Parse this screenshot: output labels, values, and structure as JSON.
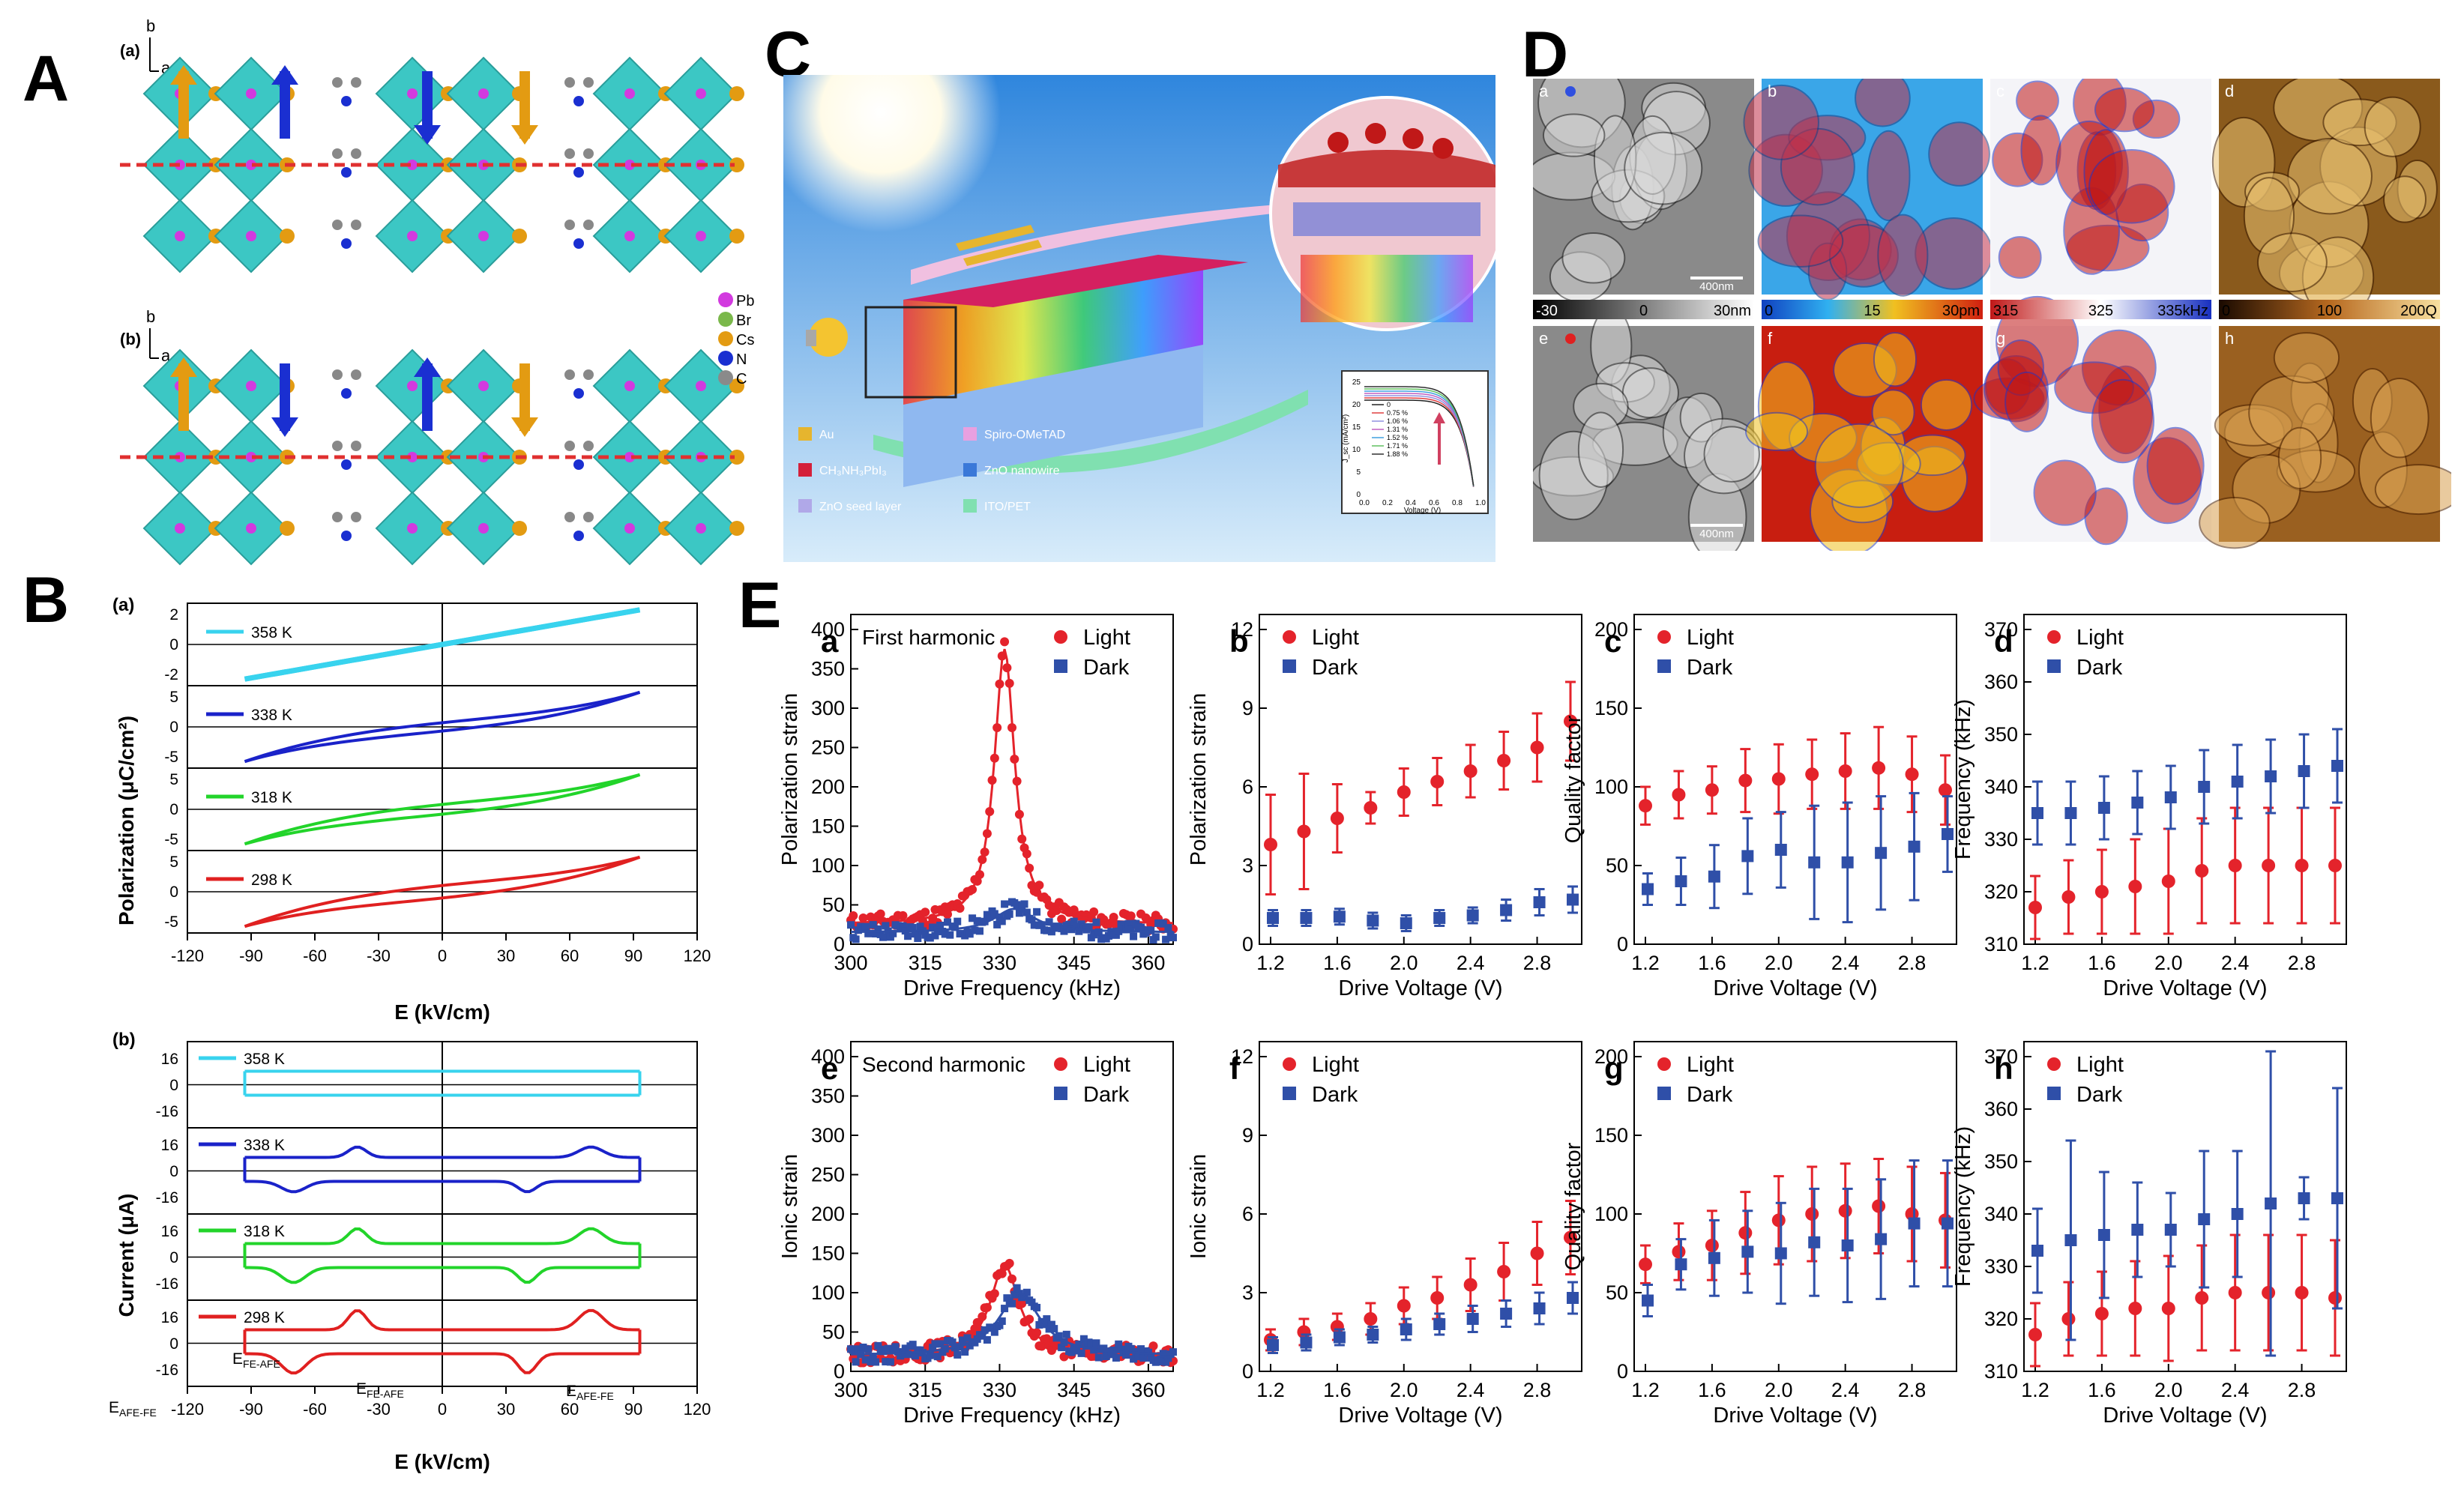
{
  "labels": {
    "A": "A",
    "B": "B",
    "C": "C",
    "D": "D",
    "E": "E"
  },
  "panelA": {
    "sub_a": "(a)",
    "sub_b": "(b)",
    "axis_b": "b",
    "axis_a": "a",
    "legend": [
      {
        "name": "Pb",
        "color": "#d23adf"
      },
      {
        "name": "Br",
        "color": "#7ab84a"
      },
      {
        "name": "Cs",
        "color": "#e39b12"
      },
      {
        "name": "N",
        "color": "#1a2fd1"
      },
      {
        "name": "C",
        "color": "#8a8a8a"
      }
    ]
  },
  "panelB": {
    "sub_a": "(a)",
    "sub_b": "(b)",
    "ylabel_a": "Polarization (μC/cm²)",
    "ylabel_b": "Current (μA)",
    "xlabel": "E (kV/cm)",
    "xticks": [
      "-120",
      "-90",
      "-60",
      "-30",
      "0",
      "30",
      "60",
      "90",
      "120"
    ],
    "temps": [
      {
        "t": "358 K",
        "color": "#38d3ee"
      },
      {
        "t": "338 K",
        "color": "#1a22c9"
      },
      {
        "t": "318 K",
        "color": "#22d42a"
      },
      {
        "t": "298 K",
        "color": "#e02020"
      }
    ],
    "pol_ticks": [
      [
        "2",
        "0",
        "-2"
      ],
      [
        "5",
        "0",
        "-5"
      ],
      [
        "5",
        "0",
        "-5"
      ],
      [
        "5",
        "0",
        "-5"
      ]
    ],
    "cur_ticks": [
      "16",
      "0",
      "-16"
    ],
    "annot": {
      "e_fe_afe": "E",
      "e_fe_afe_sub": "FE-AFE",
      "e_afe_fe": "E",
      "e_afe_fe_sub": "AFE-FE"
    }
  },
  "panelC": {
    "legend": [
      {
        "name": "Au",
        "color": "#e6b52e"
      },
      {
        "name": "Spiro-OMeTAD",
        "color": "#e8a0e0"
      },
      {
        "name": "CH₃NH₃PbI₃",
        "color": "#d4203a"
      },
      {
        "name": "ZnO nanowire",
        "color": "#3a78d8"
      },
      {
        "name": "ZnO seed layer",
        "color": "#b0a8e8"
      },
      {
        "name": "ITO/PET",
        "color": "#80e0b0"
      }
    ],
    "inset": {
      "ylabel": "J_sc (mA/cm²)",
      "xlabel": "Voltage (V)",
      "yticks": [
        "0",
        "5",
        "10",
        "15",
        "20",
        "25"
      ],
      "xticks": [
        "0.0",
        "0.2",
        "0.4",
        "0.6",
        "0.8",
        "1.0"
      ],
      "series": [
        "0",
        "0.75 %",
        "1.06 %",
        "1.31 %",
        "1.52 %",
        "1.71 %",
        "1.88 %"
      ],
      "colors": [
        "#222222",
        "#e04040",
        "#9090e0",
        "#c060c0",
        "#40a0e0",
        "#60c060",
        "#303030"
      ]
    }
  },
  "panelD": {
    "sub": [
      "a",
      "b",
      "c",
      "d",
      "e",
      "f",
      "g",
      "h"
    ],
    "scalebar": "400nm",
    "bars": [
      {
        "min": "-30",
        "mid": "0",
        "max": "30nm"
      },
      {
        "min": "0",
        "mid": "15",
        "max": "30pm"
      },
      {
        "min": "315",
        "mid": "325",
        "max": "335kHz"
      },
      {
        "min": "0",
        "mid": "100",
        "max": "200Q"
      }
    ]
  },
  "panelE": {
    "legend": {
      "light": "Light",
      "dark": "Dark"
    },
    "colors": {
      "light": "#e4232b",
      "dark": "#2f4fa8"
    },
    "plots": [
      {
        "id": "a",
        "note": "First harmonic",
        "ylabel": "Polarization strain",
        "xlabel": "Drive Frequency (kHz)",
        "yticks": [
          "0",
          "50",
          "100",
          "150",
          "200",
          "250",
          "300",
          "350",
          "400"
        ],
        "xticks": [
          "300",
          "315",
          "330",
          "345",
          "360"
        ]
      },
      {
        "id": "b",
        "note": "",
        "ylabel": "Polarization strain",
        "xlabel": "Drive Voltage (V)",
        "yticks": [
          "0",
          "3",
          "6",
          "9",
          "12"
        ],
        "xticks": [
          "1.2",
          "1.6",
          "2.0",
          "2.4",
          "2.8"
        ]
      },
      {
        "id": "c",
        "note": "",
        "ylabel": "Quality factor",
        "xlabel": "Drive Voltage (V)",
        "yticks": [
          "0",
          "50",
          "100",
          "150",
          "200"
        ],
        "xticks": [
          "1.2",
          "1.6",
          "2.0",
          "2.4",
          "2.8"
        ]
      },
      {
        "id": "d",
        "note": "",
        "ylabel": "Frequency (kHz)",
        "xlabel": "Drive Voltage (V)",
        "yticks": [
          "310",
          "320",
          "330",
          "340",
          "350",
          "360",
          "370"
        ],
        "xticks": [
          "1.2",
          "1.6",
          "2.0",
          "2.4",
          "2.8"
        ]
      },
      {
        "id": "e",
        "note": "Second harmonic",
        "ylabel": "Ionic strain",
        "xlabel": "Drive Frequency (kHz)",
        "yticks": [
          "0",
          "50",
          "100",
          "150",
          "200",
          "250",
          "300",
          "350",
          "400"
        ],
        "xticks": [
          "300",
          "315",
          "330",
          "345",
          "360"
        ]
      },
      {
        "id": "f",
        "note": "",
        "ylabel": "Ionic strain",
        "xlabel": "Drive Voltage (V)",
        "yticks": [
          "0",
          "3",
          "6",
          "9",
          "12"
        ],
        "xticks": [
          "1.2",
          "1.6",
          "2.0",
          "2.4",
          "2.8"
        ]
      },
      {
        "id": "g",
        "note": "",
        "ylabel": "Quality factor",
        "xlabel": "Drive Voltage (V)",
        "yticks": [
          "0",
          "50",
          "100",
          "150",
          "200"
        ],
        "xticks": [
          "1.2",
          "1.6",
          "2.0",
          "2.4",
          "2.8"
        ]
      },
      {
        "id": "h",
        "note": "",
        "ylabel": "Frequency (kHz)",
        "xlabel": "Drive Voltage (V)",
        "yticks": [
          "310",
          "320",
          "330",
          "340",
          "350",
          "360",
          "370"
        ],
        "xticks": [
          "1.2",
          "1.6",
          "2.0",
          "2.4",
          "2.8"
        ]
      }
    ]
  },
  "chart_data": [
    {
      "type": "line",
      "panel": "E-a",
      "title": "First harmonic",
      "xlabel": "Drive Frequency (kHz)",
      "ylabel": "Polarization strain",
      "xlim": [
        300,
        365
      ],
      "ylim": [
        0,
        400
      ],
      "series": [
        {
          "name": "Light",
          "peak_x": 331,
          "peak_y": 375,
          "baseline": 25
        },
        {
          "name": "Dark",
          "peak_x": 333,
          "peak_y": 45,
          "baseline": 15
        }
      ]
    },
    {
      "type": "scatter",
      "panel": "E-b",
      "xlabel": "Drive Voltage (V)",
      "ylabel": "Polarization strain",
      "x": [
        1.2,
        1.4,
        1.6,
        1.8,
        2.0,
        2.2,
        2.4,
        2.6,
        2.8,
        3.0
      ],
      "ylim": [
        0,
        12
      ],
      "series": [
        {
          "name": "Light",
          "values": [
            3.8,
            4.3,
            4.8,
            5.2,
            5.8,
            6.2,
            6.6,
            7.0,
            7.5,
            8.5
          ],
          "err": [
            1.9,
            2.2,
            1.3,
            0.6,
            0.9,
            0.9,
            1.0,
            1.1,
            1.3,
            1.5
          ]
        },
        {
          "name": "Dark",
          "values": [
            1.0,
            1.0,
            1.05,
            0.9,
            0.8,
            1.0,
            1.1,
            1.3,
            1.6,
            1.7
          ],
          "err": [
            0.3,
            0.3,
            0.3,
            0.3,
            0.3,
            0.3,
            0.3,
            0.4,
            0.5,
            0.5
          ]
        }
      ]
    },
    {
      "type": "scatter",
      "panel": "E-c",
      "xlabel": "Drive Voltage (V)",
      "ylabel": "Quality factor",
      "x": [
        1.2,
        1.4,
        1.6,
        1.8,
        2.0,
        2.2,
        2.4,
        2.6,
        2.8,
        3.0
      ],
      "ylim": [
        0,
        200
      ],
      "series": [
        {
          "name": "Light",
          "values": [
            88,
            95,
            98,
            104,
            105,
            108,
            110,
            112,
            108,
            98
          ],
          "err": [
            12,
            15,
            15,
            20,
            22,
            22,
            24,
            26,
            24,
            22
          ]
        },
        {
          "name": "Dark",
          "values": [
            35,
            40,
            43,
            56,
            60,
            52,
            52,
            58,
            62,
            70
          ],
          "err": [
            10,
            15,
            20,
            24,
            24,
            36,
            38,
            36,
            34,
            24
          ]
        }
      ]
    },
    {
      "type": "scatter",
      "panel": "E-d",
      "xlabel": "Drive Voltage (V)",
      "ylabel": "Frequency (kHz)",
      "x": [
        1.2,
        1.4,
        1.6,
        1.8,
        2.0,
        2.2,
        2.4,
        2.6,
        2.8,
        3.0
      ],
      "ylim": [
        310,
        370
      ],
      "series": [
        {
          "name": "Light",
          "values": [
            317,
            319,
            320,
            321,
            322,
            324,
            325,
            325,
            325,
            325
          ],
          "err": [
            6,
            7,
            8,
            9,
            10,
            10,
            11,
            11,
            11,
            11
          ]
        },
        {
          "name": "Dark",
          "values": [
            335,
            335,
            336,
            337,
            338,
            340,
            341,
            342,
            343,
            344
          ],
          "err": [
            6,
            6,
            6,
            6,
            6,
            7,
            7,
            7,
            7,
            7
          ]
        }
      ]
    },
    {
      "type": "line",
      "panel": "E-e",
      "title": "Second harmonic",
      "xlabel": "Drive Frequency (kHz)",
      "ylabel": "Ionic strain",
      "xlim": [
        300,
        365
      ],
      "ylim": [
        0,
        400
      ],
      "series": [
        {
          "name": "Light",
          "peak_x": 331,
          "peak_y": 135,
          "baseline": 20
        },
        {
          "name": "Dark",
          "peak_x": 334,
          "peak_y": 100,
          "baseline": 20
        }
      ]
    },
    {
      "type": "scatter",
      "panel": "E-f",
      "xlabel": "Drive Voltage (V)",
      "ylabel": "Ionic strain",
      "x": [
        1.2,
        1.4,
        1.6,
        1.8,
        2.0,
        2.2,
        2.4,
        2.6,
        2.8,
        3.0
      ],
      "ylim": [
        0,
        12
      ],
      "series": [
        {
          "name": "Light",
          "values": [
            1.2,
            1.5,
            1.7,
            2.0,
            2.5,
            2.8,
            3.3,
            3.8,
            4.5,
            5.1
          ],
          "err": [
            0.4,
            0.5,
            0.5,
            0.6,
            0.7,
            0.8,
            1.0,
            1.1,
            1.2,
            1.4
          ]
        },
        {
          "name": "Dark",
          "values": [
            1.0,
            1.1,
            1.3,
            1.4,
            1.6,
            1.8,
            2.0,
            2.2,
            2.4,
            2.8
          ],
          "err": [
            0.3,
            0.3,
            0.3,
            0.3,
            0.4,
            0.4,
            0.5,
            0.5,
            0.6,
            0.6
          ]
        }
      ]
    },
    {
      "type": "scatter",
      "panel": "E-g",
      "xlabel": "Drive Voltage (V)",
      "ylabel": "Quality factor",
      "x": [
        1.2,
        1.4,
        1.6,
        1.8,
        2.0,
        2.2,
        2.4,
        2.6,
        2.8,
        3.0
      ],
      "ylim": [
        0,
        200
      ],
      "series": [
        {
          "name": "Light",
          "values": [
            68,
            76,
            80,
            88,
            96,
            100,
            102,
            105,
            100,
            96
          ],
          "err": [
            12,
            18,
            22,
            26,
            28,
            30,
            30,
            30,
            30,
            30
          ]
        },
        {
          "name": "Dark",
          "values": [
            45,
            68,
            72,
            76,
            75,
            82,
            80,
            84,
            94,
            94
          ],
          "err": [
            10,
            16,
            24,
            26,
            32,
            34,
            36,
            38,
            40,
            40
          ]
        }
      ]
    },
    {
      "type": "scatter",
      "panel": "E-h",
      "xlabel": "Drive Voltage (V)",
      "ylabel": "Frequency (kHz)",
      "x": [
        1.2,
        1.4,
        1.6,
        1.8,
        2.0,
        2.2,
        2.4,
        2.6,
        2.8,
        3.0
      ],
      "ylim": [
        310,
        370
      ],
      "series": [
        {
          "name": "Light",
          "values": [
            317,
            320,
            321,
            322,
            322,
            324,
            325,
            325,
            325,
            324
          ],
          "err": [
            6,
            7,
            8,
            9,
            10,
            10,
            11,
            11,
            11,
            11
          ]
        },
        {
          "name": "Dark",
          "values": [
            333,
            335,
            336,
            337,
            337,
            339,
            340,
            342,
            343,
            343
          ],
          "err": [
            8,
            19,
            12,
            9,
            7,
            13,
            12,
            29,
            4,
            21
          ]
        }
      ]
    }
  ]
}
